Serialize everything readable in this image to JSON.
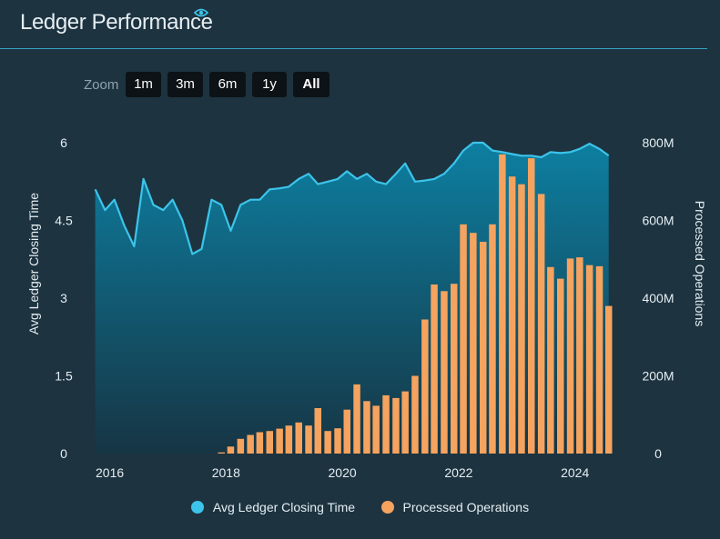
{
  "header": {
    "title": "Ledger Performance",
    "icon": "eye-icon"
  },
  "zoom": {
    "label": "Zoom",
    "buttons": [
      "1m",
      "3m",
      "6m",
      "1y",
      "All"
    ],
    "active": "All"
  },
  "colors": {
    "background": "#1d3340",
    "line": "#3cc4ea",
    "bar": "#f5a35f",
    "area_top": "#0d7fa1",
    "area_bottom": "#163544"
  },
  "chart_data": {
    "type": "bar+line",
    "x_axis": {
      "ticks": [
        "2016",
        "2018",
        "2020",
        "2022",
        "2024"
      ],
      "range": [
        2015.6,
        2024.85
      ]
    },
    "y_left": {
      "label": "Avg Ledger Closing Time",
      "ticks": [
        "0",
        "1.5",
        "3",
        "4.5",
        "6"
      ],
      "range": [
        0,
        6
      ]
    },
    "y_right": {
      "label": "Processed Operations",
      "ticks": [
        "0",
        "200M",
        "400M",
        "600M",
        "800M"
      ],
      "range": [
        0,
        800000000
      ]
    },
    "legend": {
      "placement": "bottom-center"
    },
    "series": [
      {
        "name": "Avg Ledger Closing Time",
        "type": "area-line",
        "axis": "left",
        "x": [
          2015.75,
          2015.92,
          2016.08,
          2016.25,
          2016.42,
          2016.58,
          2016.75,
          2016.92,
          2017.08,
          2017.25,
          2017.42,
          2017.58,
          2017.75,
          2017.92,
          2018.08,
          2018.25,
          2018.42,
          2018.58,
          2018.75,
          2018.92,
          2019.08,
          2019.25,
          2019.42,
          2019.58,
          2019.75,
          2019.92,
          2020.08,
          2020.25,
          2020.42,
          2020.58,
          2020.75,
          2020.92,
          2021.08,
          2021.25,
          2021.42,
          2021.58,
          2021.75,
          2021.92,
          2022.08,
          2022.25,
          2022.42,
          2022.58,
          2022.75,
          2022.92,
          2023.08,
          2023.25,
          2023.42,
          2023.58,
          2023.75,
          2023.92,
          2024.08,
          2024.25,
          2024.42,
          2024.58
        ],
        "values": [
          5.1,
          4.7,
          4.9,
          4.4,
          4.0,
          5.3,
          4.8,
          4.7,
          4.9,
          4.5,
          3.85,
          3.95,
          4.9,
          4.8,
          4.3,
          4.8,
          4.9,
          4.9,
          5.1,
          5.12,
          5.15,
          5.3,
          5.4,
          5.2,
          5.25,
          5.3,
          5.45,
          5.3,
          5.4,
          5.25,
          5.2,
          5.4,
          5.6,
          5.25,
          5.27,
          5.3,
          5.4,
          5.6,
          5.85,
          6.0,
          6.0,
          5.85,
          5.82,
          5.78,
          5.75,
          5.75,
          5.72,
          5.82,
          5.8,
          5.82,
          5.88,
          5.98,
          5.88,
          5.75
        ]
      },
      {
        "name": "Processed Operations",
        "type": "bar",
        "axis": "right",
        "x": [
          2017.92,
          2018.08,
          2018.25,
          2018.42,
          2018.58,
          2018.75,
          2018.92,
          2019.08,
          2019.25,
          2019.42,
          2019.58,
          2019.75,
          2019.92,
          2020.08,
          2020.25,
          2020.42,
          2020.58,
          2020.75,
          2020.92,
          2021.08,
          2021.25,
          2021.42,
          2021.58,
          2021.75,
          2021.92,
          2022.08,
          2022.25,
          2022.42,
          2022.58,
          2022.75,
          2022.92,
          2023.08,
          2023.25,
          2023.42,
          2023.58,
          2023.75,
          2023.92,
          2024.08,
          2024.25,
          2024.42,
          2024.58
        ],
        "values": [
          3000000,
          18000000,
          38000000,
          48000000,
          55000000,
          58000000,
          64000000,
          72000000,
          80000000,
          72000000,
          117000000,
          58000000,
          65000000,
          113000000,
          178000000,
          135000000,
          123000000,
          150000000,
          143000000,
          160000000,
          200000000,
          345000000,
          435000000,
          418000000,
          437000000,
          590000000,
          568000000,
          545000000,
          590000000,
          770000000,
          713000000,
          693000000,
          760000000,
          668000000,
          480000000,
          450000000,
          502000000,
          505000000,
          485000000,
          482000000,
          380000000
        ]
      }
    ]
  }
}
